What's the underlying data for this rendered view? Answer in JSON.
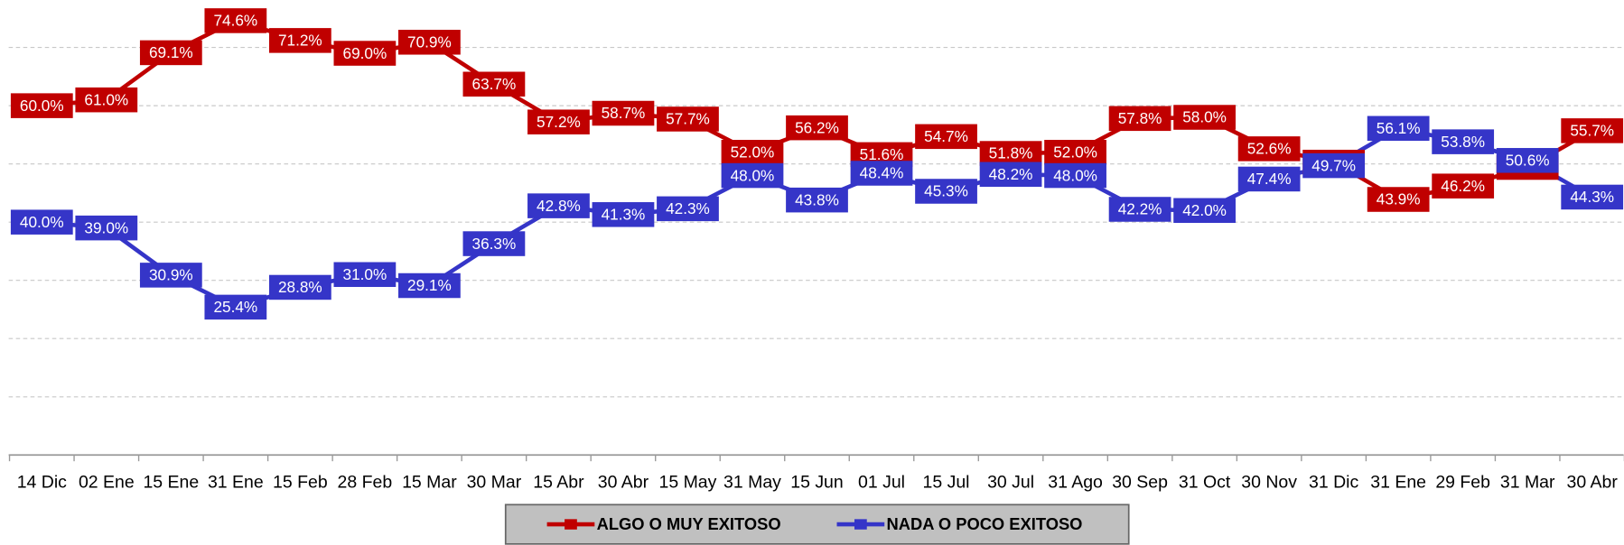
{
  "chart_data": {
    "type": "line",
    "categories": [
      "14 Dic",
      "02 Ene",
      "15 Ene",
      "31 Ene",
      "15 Feb",
      "28 Feb",
      "15 Mar",
      "30 Mar",
      "15 Abr",
      "30 Abr",
      "15 May",
      "31 May",
      "15 Jun",
      "01 Jul",
      "15 Jul",
      "30 Jul",
      "31 Ago",
      "30 Sep",
      "31 Oct",
      "30 Nov",
      "31 Dic",
      "31 Ene",
      "29 Feb",
      "31 Mar",
      "30 Abr"
    ],
    "series": [
      {
        "name": "ALGO O MUY EXITOSO",
        "color": "#c00000",
        "values": [
          60.0,
          61.0,
          69.1,
          74.6,
          71.2,
          69.0,
          70.9,
          63.7,
          57.2,
          58.7,
          57.7,
          52.0,
          56.2,
          51.6,
          54.7,
          51.8,
          52.0,
          57.8,
          58.0,
          52.6,
          50.3,
          43.9,
          46.2,
          49.4,
          55.7
        ],
        "value_labels": [
          "60.0%",
          "61.0%",
          "69.1%",
          "74.6%",
          "71.2%",
          "69.0%",
          "70.9%",
          "63.7%",
          "57.2%",
          "58.7%",
          "57.7%",
          "52.0%",
          "56.2%",
          "51.6%",
          "54.7%",
          "51.8%",
          "52.0%",
          "57.8%",
          "58.0%",
          "52.6%",
          "50.3%",
          "43.9%",
          "46.2%",
          "49.4%",
          "55.7%"
        ]
      },
      {
        "name": "NADA O POCO EXITOSO",
        "color": "#3535c8",
        "values": [
          40.0,
          39.0,
          30.9,
          25.4,
          28.8,
          31.0,
          29.1,
          36.3,
          42.8,
          41.3,
          42.3,
          48.0,
          43.8,
          48.4,
          45.3,
          48.2,
          48.0,
          42.2,
          42.0,
          47.4,
          49.7,
          56.1,
          53.8,
          50.6,
          44.3
        ],
        "value_labels": [
          "40.0%",
          "39.0%",
          "30.9%",
          "25.4%",
          "28.8%",
          "31.0%",
          "29.1%",
          "36.3%",
          "42.8%",
          "41.3%",
          "42.3%",
          "48.0%",
          "43.8%",
          "48.4%",
          "45.3%",
          "48.2%",
          "48.0%",
          "42.2%",
          "42.0%",
          "47.4%",
          "49.7%",
          "56.1%",
          "53.8%",
          "50.6%",
          "44.3%"
        ]
      }
    ],
    "ylim": [
      0,
      80
    ],
    "yticks": [
      0,
      10,
      20,
      30,
      40,
      50,
      60,
      70
    ],
    "grid": true,
    "legend": "bottom"
  }
}
